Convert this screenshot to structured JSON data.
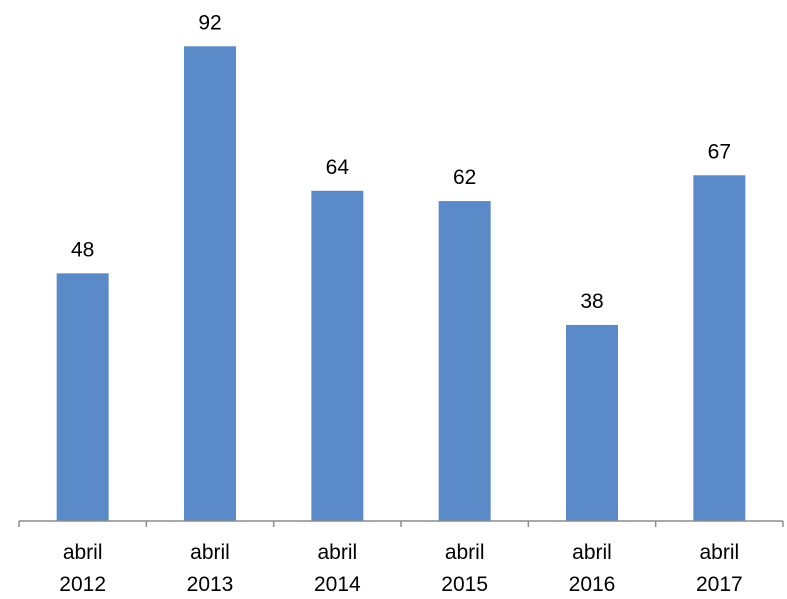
{
  "chart_data": {
    "type": "bar",
    "categories": [
      [
        "abril",
        "2012"
      ],
      [
        "abril",
        "2013"
      ],
      [
        "abril",
        "2014"
      ],
      [
        "abril",
        "2015"
      ],
      [
        "abril",
        "2016"
      ],
      [
        "abril",
        "2017"
      ]
    ],
    "values": [
      48,
      92,
      64,
      62,
      38,
      67
    ],
    "ylim": [
      0,
      100
    ],
    "grid": false,
    "data_labels": true,
    "bar_color": "#5B8AC9",
    "axis_color": "#8C8C8C"
  }
}
